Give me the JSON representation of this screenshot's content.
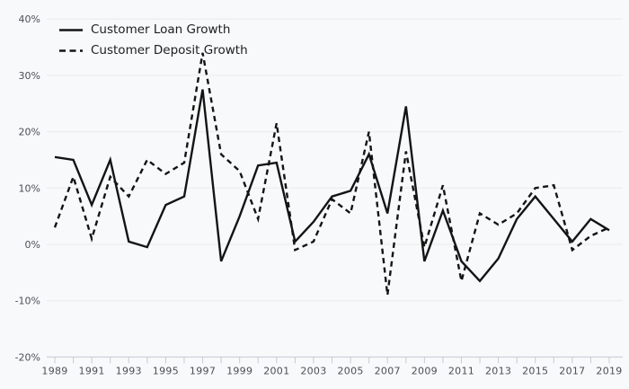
{
  "chart_data": {
    "type": "line",
    "title": "",
    "xlabel": "",
    "ylabel": "",
    "x": [
      1989,
      1990,
      1991,
      1992,
      1993,
      1994,
      1995,
      1996,
      1997,
      1998,
      1999,
      2000,
      2001,
      2002,
      2003,
      2004,
      2005,
      2006,
      2007,
      2008,
      2009,
      2010,
      2011,
      2012,
      2013,
      2014,
      2015,
      2016,
      2017,
      2018,
      2019
    ],
    "x_tick_labels": [
      "1989",
      "1991",
      "1993",
      "1995",
      "1997",
      "1999",
      "2001",
      "2003",
      "2005",
      "2007",
      "2009",
      "2011",
      "2013",
      "2015",
      "2017",
      "2019"
    ],
    "y_ticks": [
      40,
      30,
      20,
      10,
      0,
      -10,
      -20
    ],
    "y_tick_labels": [
      "40%",
      "30%",
      "20%",
      "10%",
      "0%",
      "-10%",
      "-20%"
    ],
    "ylim": [
      -20,
      40
    ],
    "grid": true,
    "legend_position": "top-left",
    "series": [
      {
        "name": "Customer Loan Growth",
        "style": "solid",
        "values": [
          15.5,
          15,
          7,
          15,
          0.5,
          -0.5,
          7,
          8.5,
          27.5,
          -3,
          5,
          14,
          14.5,
          0.5,
          4,
          8.5,
          9.5,
          16,
          5.5,
          24.5,
          -3,
          6,
          -3,
          -6.5,
          -2.5,
          4.5,
          8.5,
          4.5,
          0.5,
          4.5,
          2.5
        ]
      },
      {
        "name": "Customer Deposit Growth",
        "style": "dashed",
        "values": [
          3,
          12,
          1,
          12,
          8.5,
          15,
          12.5,
          14.5,
          34,
          16,
          13,
          4.5,
          21.5,
          -1,
          0.5,
          8,
          5.5,
          20,
          -9,
          16.5,
          -0.5,
          10.5,
          -6.5,
          5.5,
          3.5,
          5.5,
          10,
          10.5,
          -1,
          1.5,
          3
        ]
      }
    ]
  },
  "colors": {
    "background": "#f8f9fa",
    "gridline": "#e8eaec",
    "axis": "#c4cbd8",
    "tick_label": "#4b4f55",
    "line": "#141414"
  }
}
